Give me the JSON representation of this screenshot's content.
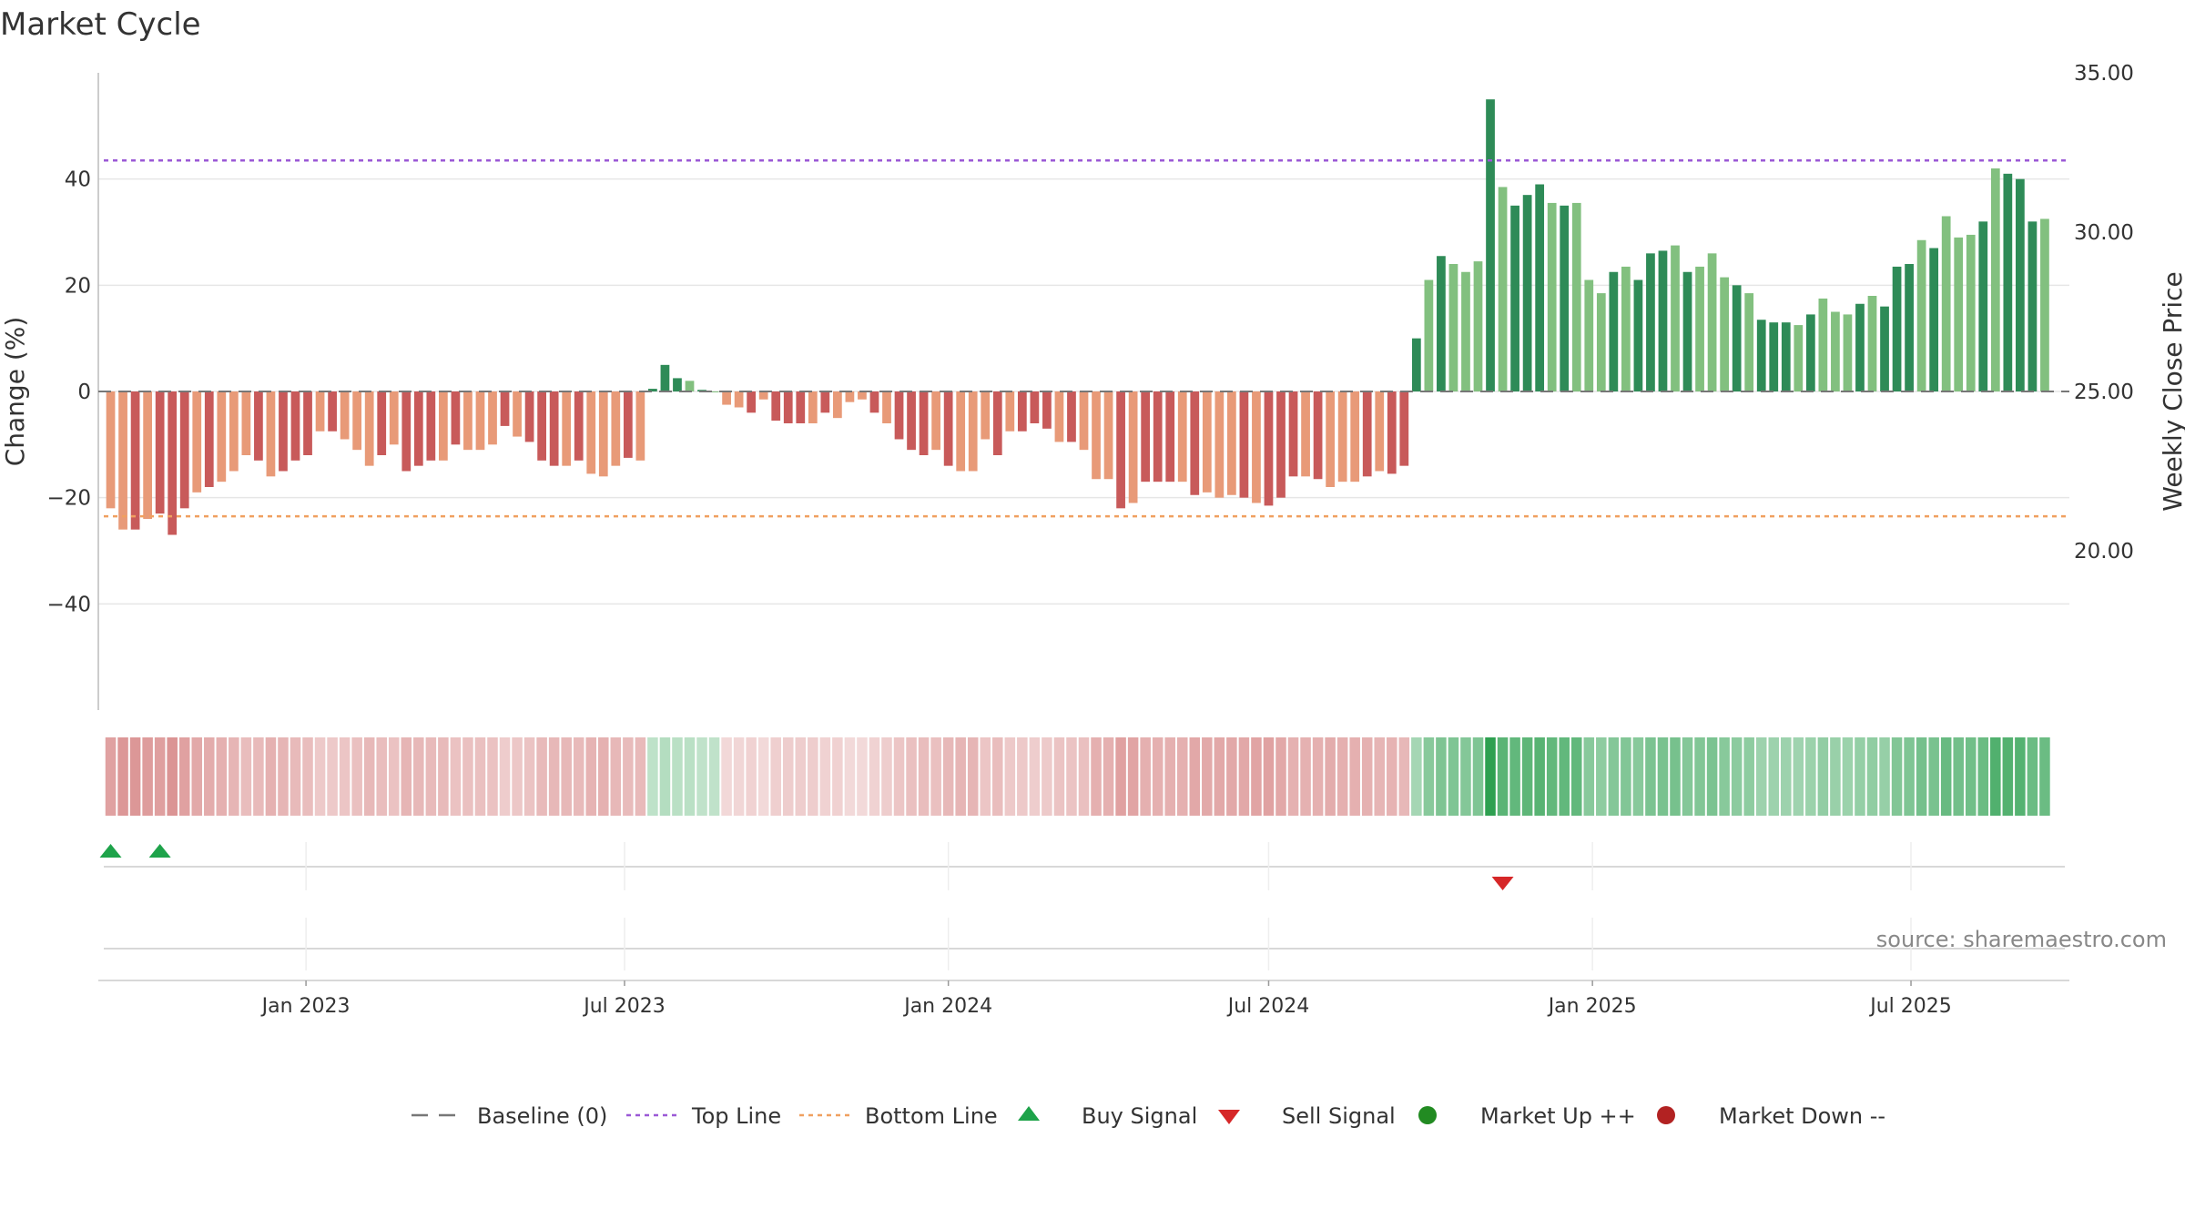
{
  "chart_data": {
    "type": "bar",
    "title": "Market Cycle",
    "ylabel": "Change (%)",
    "y2label": "Weekly Close Price",
    "ylim": [
      -60,
      60
    ],
    "y2lim": [
      15,
      35
    ],
    "yticks": [
      "40",
      "20",
      "0",
      "−20",
      "−40"
    ],
    "y2ticks": [
      "35.00",
      "30.00",
      "25.00",
      "20.00"
    ],
    "xlim": [
      "2022-09-05",
      "2025-09-29"
    ],
    "xticks": [
      {
        "date": "2023-01-01",
        "label": "Jan 2023"
      },
      {
        "date": "2023-07-01",
        "label": "Jul 2023"
      },
      {
        "date": "2024-01-01",
        "label": "Jan 2024"
      },
      {
        "date": "2024-07-01",
        "label": "Jul 2024"
      },
      {
        "date": "2025-01-01",
        "label": "Jan 2025"
      },
      {
        "date": "2025-07-01",
        "label": "Jul 2025"
      }
    ],
    "top_line": 43.5,
    "bottom_line": -23.5,
    "start_week": "2022-09-12",
    "values": [
      -22,
      -26,
      -26,
      -24,
      -23,
      -27,
      -22,
      -19,
      -18,
      -17,
      -15,
      -12,
      -13,
      -16,
      -15,
      -13,
      -12,
      -7.5,
      -7.5,
      -9,
      -11,
      -14,
      -12,
      -10,
      -15,
      -14,
      -13,
      -13,
      -10,
      -11,
      -11,
      -10,
      -6.5,
      -8.5,
      -9.5,
      -13,
      -14,
      -14,
      -13,
      -15.5,
      -16,
      -14,
      -12.5,
      -13,
      0.5,
      5,
      2.5,
      2,
      0.3,
      0,
      -2.5,
      -3,
      -4,
      -1.5,
      -5.5,
      -6,
      -6,
      -6,
      -4,
      -5,
      -2,
      -1.5,
      -4,
      -6,
      -9,
      -11,
      -12,
      -11,
      -14,
      -15,
      -15,
      -9,
      -12,
      -7.5,
      -7.5,
      -6,
      -7,
      -9.5,
      -9.5,
      -11,
      -16.5,
      -16.5,
      -22,
      -21,
      -17,
      -17,
      -17,
      -17,
      -19.5,
      -19,
      -20,
      -19.5,
      -20,
      -21,
      -21.5,
      -20,
      -16,
      -16,
      -16.5,
      -18,
      -17,
      -17,
      -16,
      -15,
      -15.5,
      -14,
      10,
      21,
      25.5,
      24,
      22.5,
      24.5,
      55,
      38.5,
      35,
      37,
      39,
      35.5,
      35,
      35.5,
      21,
      18.5,
      22.5,
      23.5,
      21,
      26,
      26.5,
      27.5,
      22.5,
      23.5,
      26,
      21.5,
      20,
      18.5,
      13.5,
      13,
      13,
      12.5,
      14.5,
      17.5,
      15,
      14.5,
      16.5,
      18,
      16,
      23.5,
      24,
      28.5,
      27,
      33,
      29,
      29.5,
      32,
      42,
      41,
      40,
      32,
      32.5
    ],
    "buy_signals": [
      "2022-09-12",
      "2022-10-10"
    ],
    "sell_signals": [
      "2024-11-11"
    ],
    "legend": [
      "Baseline (0)",
      "Top Line",
      "Bottom Line",
      "Buy Signal",
      "Sell Signal",
      "Market Up ++",
      "Market Down --"
    ],
    "source": "source: sharemaestro.com",
    "colors": {
      "top_line": "#9b59d6",
      "bottom_line": "#f0a060",
      "up_strong": "#2e8b57",
      "up_light": "#82c07f",
      "down_strong": "#c85a5a",
      "down_light": "#e89a78",
      "buy": "#1ea34a",
      "sell": "#d62728",
      "market_up": "#228b22",
      "market_down": "#b22222",
      "baseline": "#777777"
    }
  }
}
